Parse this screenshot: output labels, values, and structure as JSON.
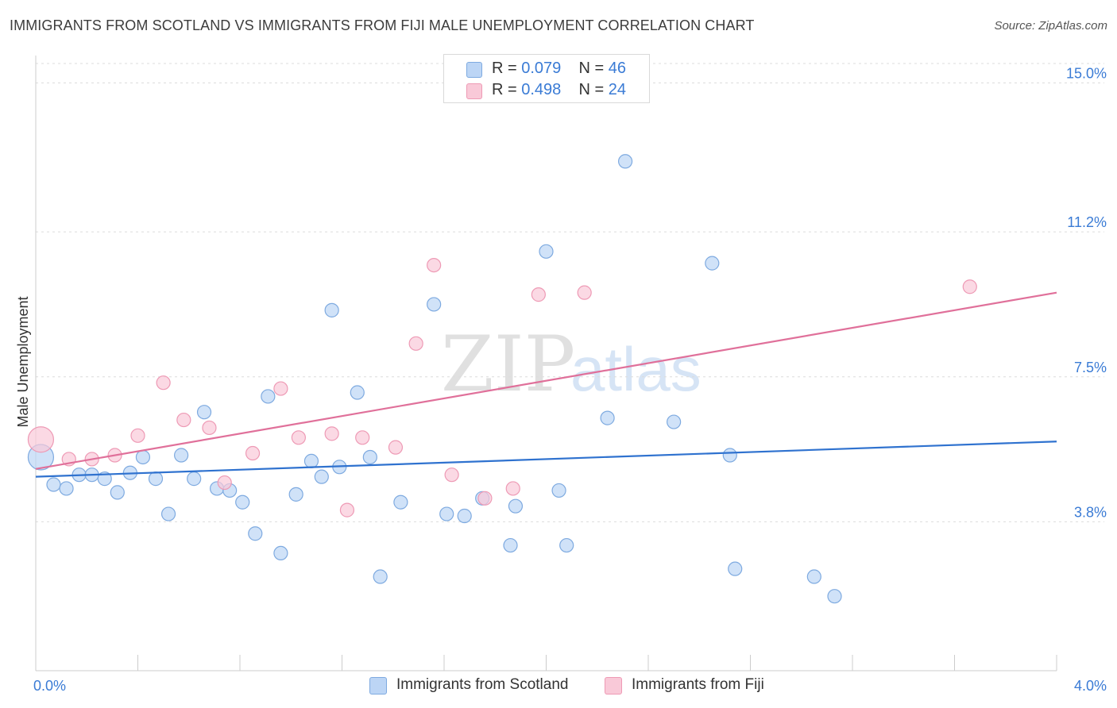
{
  "title": "IMMIGRANTS FROM SCOTLAND VS IMMIGRANTS FROM FIJI MALE UNEMPLOYMENT CORRELATION CHART",
  "source": "Source: ZipAtlas.com",
  "watermark": {
    "zip": "ZIP",
    "atlas": "atlas"
  },
  "legend": {
    "rows": [
      {
        "r_label": "R = ",
        "r_value": "0.079",
        "n_label": "N = ",
        "n_value": "46"
      },
      {
        "r_label": "R = ",
        "r_value": "0.498",
        "n_label": "N = ",
        "n_value": "24"
      }
    ]
  },
  "colors": {
    "scotland_fill": "#bcd5f5",
    "scotland_stroke": "#7eaae0",
    "scotland_line": "#2f72cf",
    "fiji_fill": "#f9c9d8",
    "fiji_stroke": "#ee9ab5",
    "fiji_line": "#e0709a",
    "tick_text": "#3a7bd5",
    "grid": "#dcdcdc"
  },
  "chart_data": {
    "type": "scatter",
    "title": "IMMIGRANTS FROM SCOTLAND VS IMMIGRANTS FROM FIJI MALE UNEMPLOYMENT CORRELATION CHART",
    "xlabel": "",
    "ylabel": "Male Unemployment",
    "xlim": [
      0.0,
      4.0
    ],
    "ylim": [
      0.0,
      15.7
    ],
    "x_tick_labels": [
      "0.0%",
      "4.0%"
    ],
    "y_ticks": [
      3.8,
      7.5,
      11.2,
      15.0
    ],
    "y_tick_labels": [
      "3.8%",
      "7.5%",
      "11.2%",
      "15.0%"
    ],
    "grid": true,
    "legend_position": "top-center",
    "series": [
      {
        "name": "Immigrants from Scotland",
        "r": 0.079,
        "n": 46,
        "trend": {
          "x": [
            0.0,
            4.0
          ],
          "y": [
            4.95,
            5.85
          ]
        },
        "points": [
          {
            "x": 0.02,
            "y": 5.45,
            "size": "large"
          },
          {
            "x": 0.07,
            "y": 4.75
          },
          {
            "x": 0.12,
            "y": 4.65
          },
          {
            "x": 0.17,
            "y": 5.0
          },
          {
            "x": 0.22,
            "y": 5.0
          },
          {
            "x": 0.27,
            "y": 4.9
          },
          {
            "x": 0.32,
            "y": 4.55
          },
          {
            "x": 0.37,
            "y": 5.05
          },
          {
            "x": 0.42,
            "y": 5.45
          },
          {
            "x": 0.47,
            "y": 4.9
          },
          {
            "x": 0.52,
            "y": 4.0
          },
          {
            "x": 0.57,
            "y": 5.5
          },
          {
            "x": 0.62,
            "y": 4.9
          },
          {
            "x": 0.66,
            "y": 6.6
          },
          {
            "x": 0.71,
            "y": 4.65
          },
          {
            "x": 0.76,
            "y": 4.6
          },
          {
            "x": 0.81,
            "y": 4.3
          },
          {
            "x": 0.86,
            "y": 3.5
          },
          {
            "x": 0.91,
            "y": 7.0
          },
          {
            "x": 0.96,
            "y": 3.0
          },
          {
            "x": 1.02,
            "y": 4.5
          },
          {
            "x": 1.08,
            "y": 5.35
          },
          {
            "x": 1.12,
            "y": 4.95
          },
          {
            "x": 1.16,
            "y": 9.2
          },
          {
            "x": 1.19,
            "y": 5.2
          },
          {
            "x": 1.26,
            "y": 7.1
          },
          {
            "x": 1.31,
            "y": 5.45
          },
          {
            "x": 1.35,
            "y": 2.4
          },
          {
            "x": 1.43,
            "y": 4.3
          },
          {
            "x": 1.56,
            "y": 9.35
          },
          {
            "x": 1.61,
            "y": 4.0
          },
          {
            "x": 1.68,
            "y": 3.95
          },
          {
            "x": 1.75,
            "y": 4.4
          },
          {
            "x": 1.86,
            "y": 3.2
          },
          {
            "x": 1.88,
            "y": 4.2
          },
          {
            "x": 2.0,
            "y": 10.7
          },
          {
            "x": 2.05,
            "y": 4.6
          },
          {
            "x": 2.08,
            "y": 3.2
          },
          {
            "x": 2.24,
            "y": 6.45
          },
          {
            "x": 2.31,
            "y": 13.0
          },
          {
            "x": 2.5,
            "y": 6.35
          },
          {
            "x": 2.65,
            "y": 10.4
          },
          {
            "x": 2.72,
            "y": 5.5
          },
          {
            "x": 2.74,
            "y": 2.6
          },
          {
            "x": 3.05,
            "y": 2.4
          },
          {
            "x": 3.13,
            "y": 1.9
          }
        ]
      },
      {
        "name": "Immigrants from Fiji",
        "r": 0.498,
        "n": 24,
        "trend": {
          "x": [
            0.0,
            4.0
          ],
          "y": [
            5.15,
            9.65
          ]
        },
        "points": [
          {
            "x": 0.02,
            "y": 5.9,
            "size": "large"
          },
          {
            "x": 0.13,
            "y": 5.4
          },
          {
            "x": 0.22,
            "y": 5.4
          },
          {
            "x": 0.31,
            "y": 5.5
          },
          {
            "x": 0.4,
            "y": 6.0
          },
          {
            "x": 0.5,
            "y": 7.35
          },
          {
            "x": 0.58,
            "y": 6.4
          },
          {
            "x": 0.68,
            "y": 6.2
          },
          {
            "x": 0.74,
            "y": 4.8
          },
          {
            "x": 0.85,
            "y": 5.55
          },
          {
            "x": 0.96,
            "y": 7.2
          },
          {
            "x": 1.03,
            "y": 5.95
          },
          {
            "x": 1.16,
            "y": 6.05
          },
          {
            "x": 1.22,
            "y": 4.1
          },
          {
            "x": 1.28,
            "y": 5.95
          },
          {
            "x": 1.41,
            "y": 5.7
          },
          {
            "x": 1.49,
            "y": 8.35
          },
          {
            "x": 1.56,
            "y": 10.35
          },
          {
            "x": 1.63,
            "y": 5.0
          },
          {
            "x": 1.76,
            "y": 4.4
          },
          {
            "x": 1.87,
            "y": 4.65
          },
          {
            "x": 1.97,
            "y": 9.6
          },
          {
            "x": 2.15,
            "y": 9.65
          },
          {
            "x": 3.66,
            "y": 9.8
          }
        ]
      }
    ]
  }
}
